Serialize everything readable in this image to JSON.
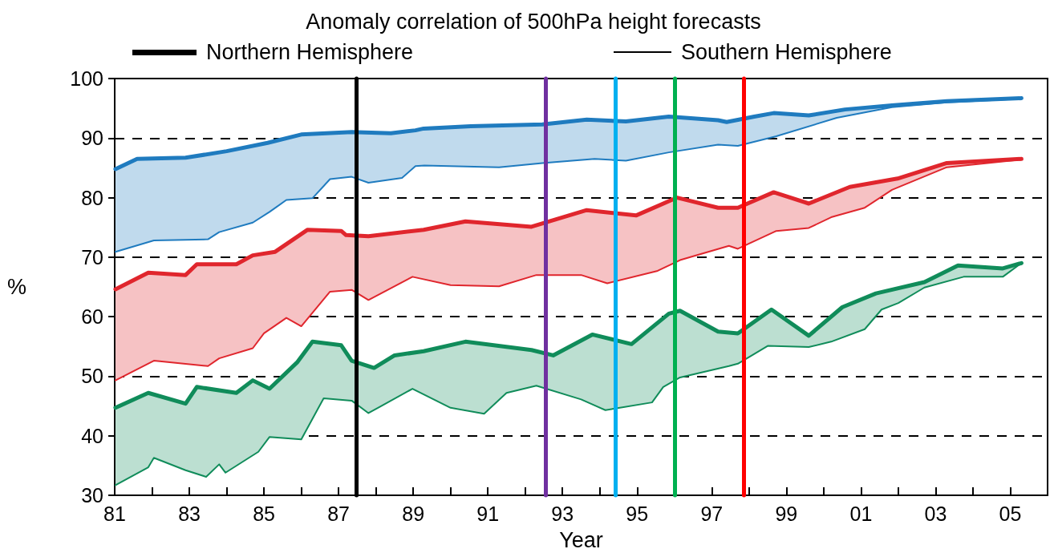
{
  "chart_data": {
    "type": "line",
    "title": "Anomaly correlation of 500hPa height forecasts",
    "xlabel": "Year",
    "ylabel": "%",
    "xlim": [
      1981,
      2006
    ],
    "ylim": [
      30,
      100
    ],
    "yticks": [
      30,
      40,
      50,
      60,
      70,
      80,
      90,
      100
    ],
    "xticks": [
      {
        "value": 1981,
        "label": "81"
      },
      {
        "value": 1982,
        "label": null
      },
      {
        "value": 1983,
        "label": "83"
      },
      {
        "value": 1984,
        "label": null
      },
      {
        "value": 1985,
        "label": "85"
      },
      {
        "value": 1986,
        "label": null
      },
      {
        "value": 1987,
        "label": "87"
      },
      {
        "value": 1988,
        "label": null
      },
      {
        "value": 1989,
        "label": "89"
      },
      {
        "value": 1990,
        "label": null
      },
      {
        "value": 1991,
        "label": "91"
      },
      {
        "value": 1992,
        "label": null
      },
      {
        "value": 1993,
        "label": "93"
      },
      {
        "value": 1994,
        "label": null
      },
      {
        "value": 1995,
        "label": "95"
      },
      {
        "value": 1996,
        "label": null
      },
      {
        "value": 1997,
        "label": "97"
      },
      {
        "value": 1998,
        "label": null
      },
      {
        "value": 1999,
        "label": "99"
      },
      {
        "value": 2000,
        "label": null
      },
      {
        "value": 2001,
        "label": "01"
      },
      {
        "value": 2002,
        "label": null
      },
      {
        "value": 2003,
        "label": "03"
      },
      {
        "value": 2004,
        "label": null
      },
      {
        "value": 2005,
        "label": "05"
      }
    ],
    "grid": "y",
    "marker": "none",
    "line_style": "solid",
    "annotations": [
      "Northern Hemisphere",
      "Southern Hemisphere"
    ],
    "series": [
      {
        "color": "#1f7bbf",
        "x": [
          1981.02,
          1981.6,
          1982.9,
          1984.0,
          1985.1,
          1986.0,
          1987.35,
          1988.4,
          1989.06,
          1989.28,
          1990.54,
          1992.46,
          1993.65,
          1994.7,
          1995.85,
          1997.17,
          1997.4,
          1998.14,
          1998.66,
          1999.6,
          2000.57,
          2001.83,
          2003.3,
          2005.3
        ],
        "values": [
          84.8,
          86.5,
          86.7,
          87.8,
          89.2,
          90.6,
          91.0,
          90.8,
          91.3,
          91.6,
          92.0,
          92.3,
          93.1,
          92.8,
          93.6,
          93.0,
          92.7,
          93.6,
          94.2,
          93.8,
          94.8,
          95.5,
          96.2,
          96.7
        ]
      },
      {
        "color": "#1f7bbf",
        "x": [
          1981.02,
          1982.05,
          1983.5,
          1983.8,
          1984.7,
          1985.15,
          1985.6,
          1986.3,
          1986.77,
          1987.35,
          1987.8,
          1988.7,
          1989.06,
          1989.3,
          1991.3,
          1992.46,
          1993.86,
          1994.7,
          1995.85,
          1997.17,
          1997.7,
          1998.73,
          2000.35,
          2001.83,
          2003.3,
          2005.3
        ],
        "values": [
          70.9,
          72.8,
          73.0,
          74.2,
          75.8,
          77.6,
          79.6,
          79.9,
          83.1,
          83.5,
          82.5,
          83.3,
          85.3,
          85.4,
          85.1,
          85.8,
          86.5,
          86.2,
          87.6,
          88.9,
          88.7,
          90.3,
          93.4,
          95.2,
          96.0,
          96.6
        ]
      },
      {
        "color": "#e0262d",
        "x": [
          1981.02,
          1981.9,
          1982.9,
          1983.2,
          1984.26,
          1984.7,
          1985.3,
          1986.17,
          1987.07,
          1987.2,
          1987.8,
          1989.28,
          1990.4,
          1992.17,
          1993.65,
          1994.97,
          1996.07,
          1997.17,
          1997.7,
          1998.66,
          1999.6,
          2000.7,
          2001.98,
          2003.3,
          2005.3
        ],
        "values": [
          64.6,
          67.4,
          67.0,
          68.8,
          68.8,
          70.3,
          70.9,
          74.6,
          74.4,
          73.7,
          73.5,
          74.6,
          76.0,
          75.1,
          77.9,
          77.0,
          80.0,
          78.3,
          78.3,
          80.9,
          79.0,
          81.8,
          83.2,
          85.8,
          86.5
        ]
      },
      {
        "color": "#e0262d",
        "x": [
          1981.02,
          1982.05,
          1983.5,
          1983.8,
          1984.7,
          1985.0,
          1985.6,
          1986.0,
          1986.77,
          1987.35,
          1987.8,
          1988.98,
          1990.0,
          1991.3,
          1992.3,
          1993.5,
          1994.2,
          1995.55,
          1996.15,
          1997.46,
          1997.7,
          1998.73,
          1999.6,
          2000.2,
          2001.1,
          2001.83,
          2003.3,
          2005.3
        ],
        "values": [
          49.3,
          52.6,
          51.7,
          53.0,
          54.7,
          57.2,
          59.8,
          58.4,
          64.2,
          64.5,
          62.8,
          66.7,
          65.3,
          65.1,
          67.0,
          67.0,
          65.6,
          67.7,
          69.5,
          71.9,
          71.4,
          74.4,
          74.9,
          76.7,
          78.3,
          81.3,
          85.1,
          86.4
        ]
      },
      {
        "color": "#108c5a",
        "x": [
          1981.02,
          1981.9,
          1982.9,
          1983.2,
          1984.26,
          1984.7,
          1985.15,
          1985.9,
          1986.3,
          1987.07,
          1987.35,
          1987.95,
          1988.5,
          1989.28,
          1990.4,
          1992.17,
          1992.75,
          1993.8,
          1994.85,
          1995.85,
          1996.15,
          1997.17,
          1997.7,
          1998.6,
          1999.6,
          2000.5,
          2001.4,
          2002.7,
          2003.6,
          2004.8,
          2005.3
        ],
        "values": [
          44.7,
          47.2,
          45.4,
          48.2,
          47.2,
          49.3,
          47.9,
          52.4,
          55.8,
          55.2,
          52.6,
          51.4,
          53.5,
          54.2,
          55.8,
          54.4,
          53.5,
          57.0,
          55.4,
          60.5,
          61.0,
          57.5,
          57.2,
          61.2,
          56.8,
          61.6,
          63.9,
          65.8,
          68.6,
          68.1,
          69.0
        ]
      },
      {
        "color": "#108c5a",
        "x": [
          1981.02,
          1981.9,
          1982.05,
          1982.9,
          1983.45,
          1983.8,
          1983.97,
          1984.85,
          1985.15,
          1986.0,
          1986.6,
          1987.35,
          1987.8,
          1988.98,
          1990.0,
          1990.9,
          1991.5,
          1992.3,
          1993.5,
          1994.15,
          1995.4,
          1995.7,
          1996.15,
          1997.46,
          1997.7,
          1998.5,
          1999.6,
          2000.2,
          2001.1,
          2001.55,
          2002.0,
          2002.7,
          2003.75,
          2004.8,
          2005.3
        ],
        "values": [
          31.7,
          34.7,
          36.3,
          34.2,
          33.1,
          35.2,
          33.8,
          37.3,
          39.8,
          39.4,
          46.3,
          45.9,
          43.8,
          47.9,
          44.7,
          43.7,
          47.2,
          48.4,
          46.1,
          44.3,
          45.6,
          48.2,
          49.8,
          51.7,
          52.1,
          55.1,
          54.9,
          55.8,
          57.9,
          61.2,
          62.3,
          64.9,
          66.7,
          66.7,
          69.0
        ]
      }
    ],
    "ref_lines": [
      {
        "axis": "x",
        "value": 1987.48,
        "color": "#000000",
        "line_style": "solid"
      },
      {
        "axis": "x",
        "value": 1992.55,
        "color": "#7030a0",
        "line_style": "solid"
      },
      {
        "axis": "x",
        "value": 1994.41,
        "color": "#00b0f0",
        "line_style": "solid"
      },
      {
        "axis": "x",
        "value": 1996.0,
        "color": "#00b050",
        "line_style": "solid"
      },
      {
        "axis": "x",
        "value": 1997.86,
        "color": "#ff0000",
        "line_style": "solid"
      }
    ]
  }
}
